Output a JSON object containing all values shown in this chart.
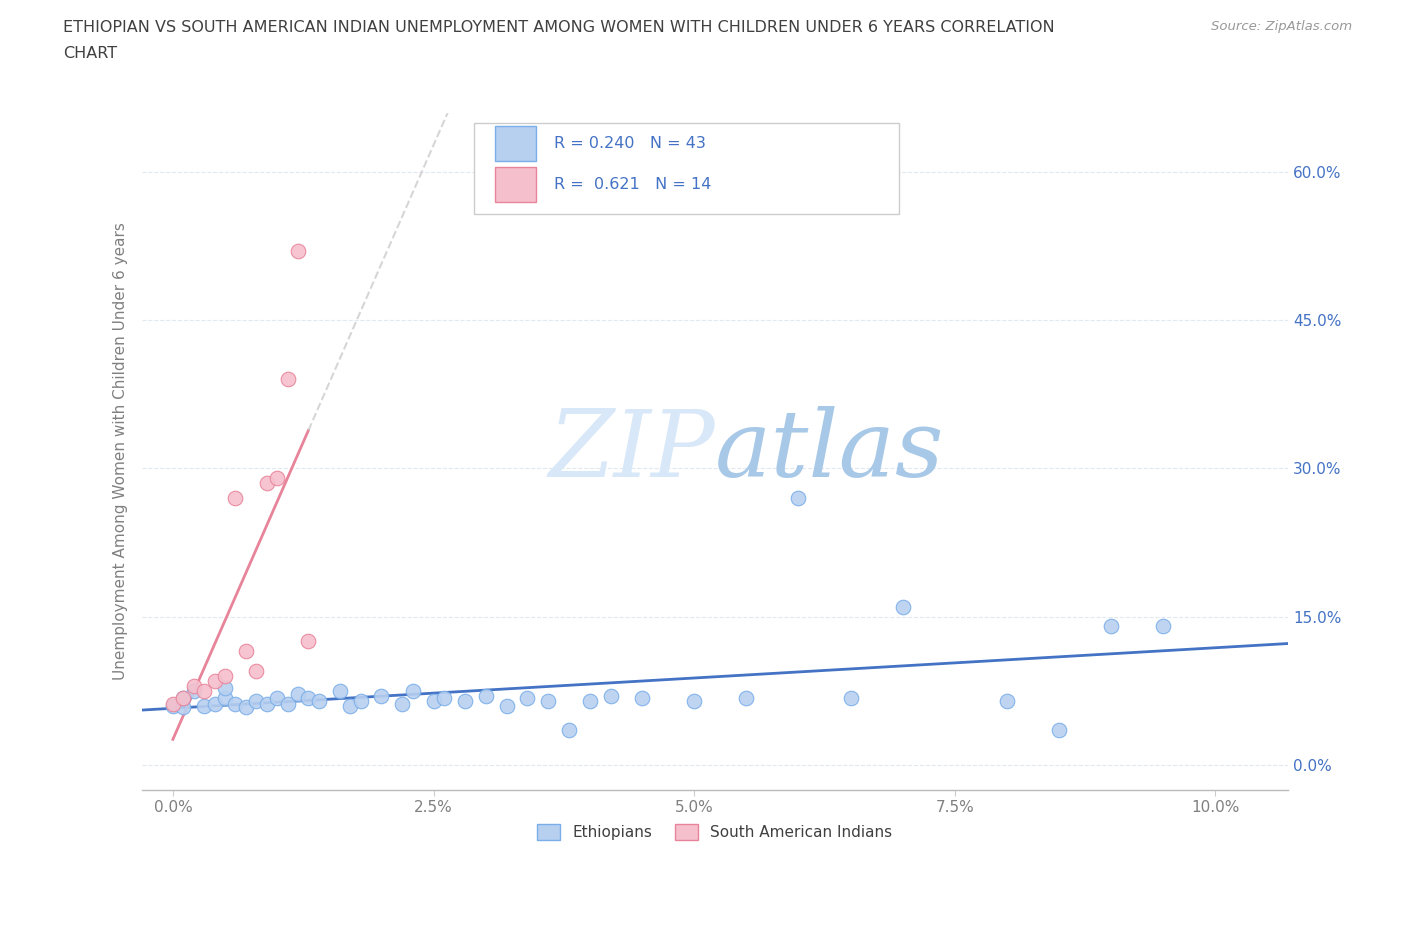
{
  "title_line1": "ETHIOPIAN VS SOUTH AMERICAN INDIAN UNEMPLOYMENT AMONG WOMEN WITH CHILDREN UNDER 6 YEARS CORRELATION",
  "title_line2": "CHART",
  "source": "Source: ZipAtlas.com",
  "ylabel_label": "Unemployment Among Women with Children Under 6 years",
  "xlim": [
    -0.003,
    0.107
  ],
  "ylim": [
    -0.025,
    0.66
  ],
  "xlabel_values": [
    0.0,
    0.025,
    0.05,
    0.075,
    0.1
  ],
  "xlabel_ticks": [
    "0.0%",
    "2.5%",
    "5.0%",
    "7.5%",
    "10.0%"
  ],
  "ylabel_values": [
    0.0,
    0.15,
    0.3,
    0.45,
    0.6
  ],
  "ylabel_ticks": [
    "0.0%",
    "15.0%",
    "30.0%",
    "45.0%",
    "60.0%"
  ],
  "ethiopian_x": [
    0.0,
    0.001,
    0.001,
    0.002,
    0.003,
    0.004,
    0.005,
    0.005,
    0.006,
    0.007,
    0.008,
    0.009,
    0.01,
    0.011,
    0.012,
    0.013,
    0.014,
    0.016,
    0.017,
    0.018,
    0.02,
    0.022,
    0.023,
    0.025,
    0.026,
    0.028,
    0.03,
    0.032,
    0.034,
    0.036,
    0.038,
    0.04,
    0.042,
    0.045,
    0.05,
    0.055,
    0.06,
    0.065,
    0.07,
    0.08,
    0.085,
    0.09,
    0.095
  ],
  "ethiopian_y": [
    0.06,
    0.058,
    0.068,
    0.075,
    0.06,
    0.062,
    0.068,
    0.078,
    0.062,
    0.058,
    0.065,
    0.062,
    0.068,
    0.062,
    0.072,
    0.068,
    0.065,
    0.075,
    0.06,
    0.065,
    0.07,
    0.062,
    0.075,
    0.065,
    0.068,
    0.065,
    0.07,
    0.06,
    0.068,
    0.065,
    0.035,
    0.065,
    0.07,
    0.068,
    0.065,
    0.068,
    0.27,
    0.068,
    0.16,
    0.065,
    0.035,
    0.14,
    0.14
  ],
  "sa_indian_x": [
    0.0,
    0.001,
    0.002,
    0.003,
    0.004,
    0.005,
    0.006,
    0.007,
    0.008,
    0.009,
    0.01,
    0.011,
    0.012,
    0.013
  ],
  "sa_indian_y": [
    0.062,
    0.068,
    0.08,
    0.075,
    0.085,
    0.09,
    0.27,
    0.115,
    0.095,
    0.285,
    0.29,
    0.39,
    0.52,
    0.125
  ],
  "ethiopian_R": 0.24,
  "ethiopian_N": 43,
  "sa_indian_R": 0.621,
  "sa_indian_N": 14,
  "ethiopian_dot_color": "#b8d0f0",
  "ethiopian_edge_color": "#7aaee8",
  "sa_indian_dot_color": "#f5bfcc",
  "sa_indian_edge_color": "#e8849a",
  "ethiopian_trend_color": "#4472c4",
  "sa_indian_trend_color": "#e8849a",
  "sa_dashed_color": "#f0a0b0",
  "background_color": "#ffffff",
  "watermark_zip_color": "#d8e8f8",
  "watermark_atlas_color": "#a8c8e8",
  "grid_color": "#e0e8f0",
  "title_color": "#404040",
  "tick_color": "#808080",
  "right_tick_color": "#4472c4",
  "legend_text_color": "#4472c4",
  "legend_border_color": "#cccccc",
  "source_color": "#999999"
}
